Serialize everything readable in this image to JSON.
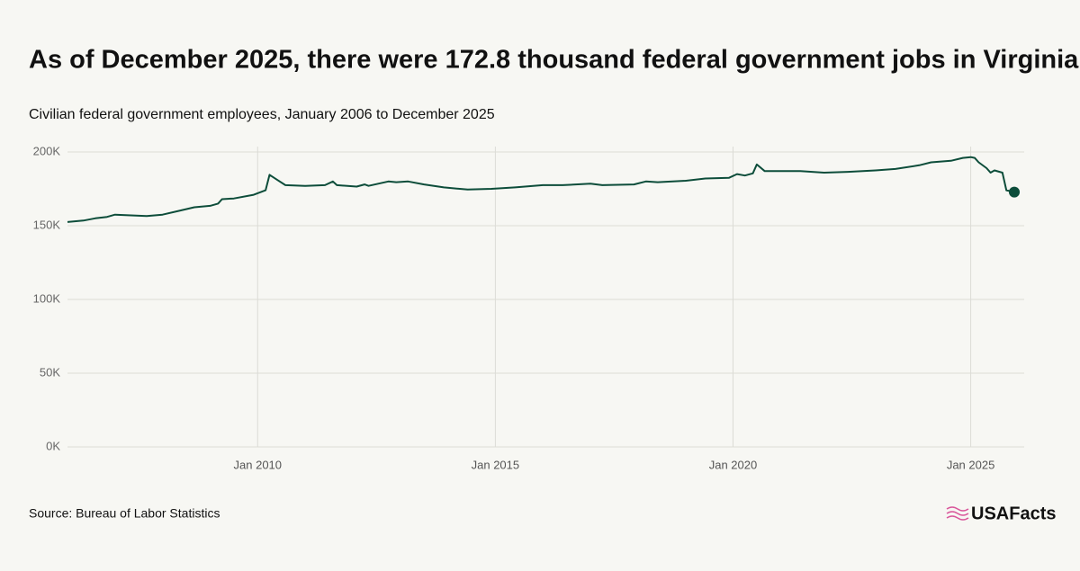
{
  "chart_data": {
    "type": "line",
    "title": "As of December 2025, there were 172.8 thousand federal government jobs in Virginia.",
    "subtitle": "Civilian federal government employees, January 2006 to December 2025",
    "source": "Source: Bureau of Labor Statistics",
    "brand": "USAFacts",
    "x": [
      "2006-01",
      "2006-05",
      "2006-08",
      "2006-11",
      "2007-01",
      "2007-05",
      "2007-09",
      "2008-01",
      "2008-05",
      "2008-09",
      "2009-01",
      "2009-03",
      "2009-04",
      "2009-07",
      "2009-12",
      "2010-03",
      "2010-04",
      "2010-06",
      "2010-08",
      "2011-01",
      "2011-06",
      "2011-08",
      "2011-09",
      "2012-02",
      "2012-04",
      "2012-05",
      "2012-10",
      "2012-12",
      "2013-03",
      "2013-07",
      "2013-12",
      "2014-06",
      "2014-12",
      "2015-06",
      "2016-01",
      "2016-06",
      "2017-01",
      "2017-04",
      "2017-12",
      "2018-03",
      "2018-06",
      "2019-01",
      "2019-06",
      "2019-12",
      "2020-02",
      "2020-04",
      "2020-06",
      "2020-07",
      "2020-09",
      "2021-06",
      "2021-12",
      "2022-06",
      "2023-01",
      "2023-06",
      "2023-12",
      "2024-03",
      "2024-08",
      "2024-11",
      "2025-01",
      "2025-02",
      "2025-03",
      "2025-05",
      "2025-06",
      "2025-07",
      "2025-09",
      "2025-10",
      "2025-12"
    ],
    "series": [
      {
        "color": "#0d4d3a",
        "values": [
          152.5,
          153.5,
          155,
          156,
          157.5,
          157,
          156.5,
          157.5,
          160,
          162.5,
          163.5,
          165,
          168,
          168.5,
          171,
          174,
          184.5,
          181,
          177.5,
          177,
          177.5,
          180,
          177.5,
          176.5,
          178,
          177,
          180,
          179.5,
          180,
          178,
          176,
          174.5,
          175,
          176,
          177.5,
          177.5,
          178.5,
          177.5,
          178,
          180,
          179.5,
          180.5,
          182,
          182.5,
          185,
          184,
          185.5,
          191.5,
          187,
          187,
          186,
          186.5,
          187.5,
          188.5,
          191,
          193,
          194,
          196,
          196.5,
          196,
          193,
          189,
          186,
          187.5,
          186,
          174,
          172.8
        ]
      }
    ],
    "xlim": [
      "2006-01",
      "2025-12"
    ],
    "xticks": [
      {
        "value": "2010-01",
        "label": "Jan 2010"
      },
      {
        "value": "2015-01",
        "label": "Jan 2015"
      },
      {
        "value": "2020-01",
        "label": "Jan 2020"
      },
      {
        "value": "2025-01",
        "label": "Jan 2025"
      }
    ],
    "ylim": [
      0,
      200
    ],
    "yticks": [
      {
        "value": 0,
        "label": "0K"
      },
      {
        "value": 50,
        "label": "50K"
      },
      {
        "value": 100,
        "label": "100K"
      },
      {
        "value": 150,
        "label": "150K"
      },
      {
        "value": 200,
        "label": "200K"
      }
    ],
    "grid": true
  }
}
